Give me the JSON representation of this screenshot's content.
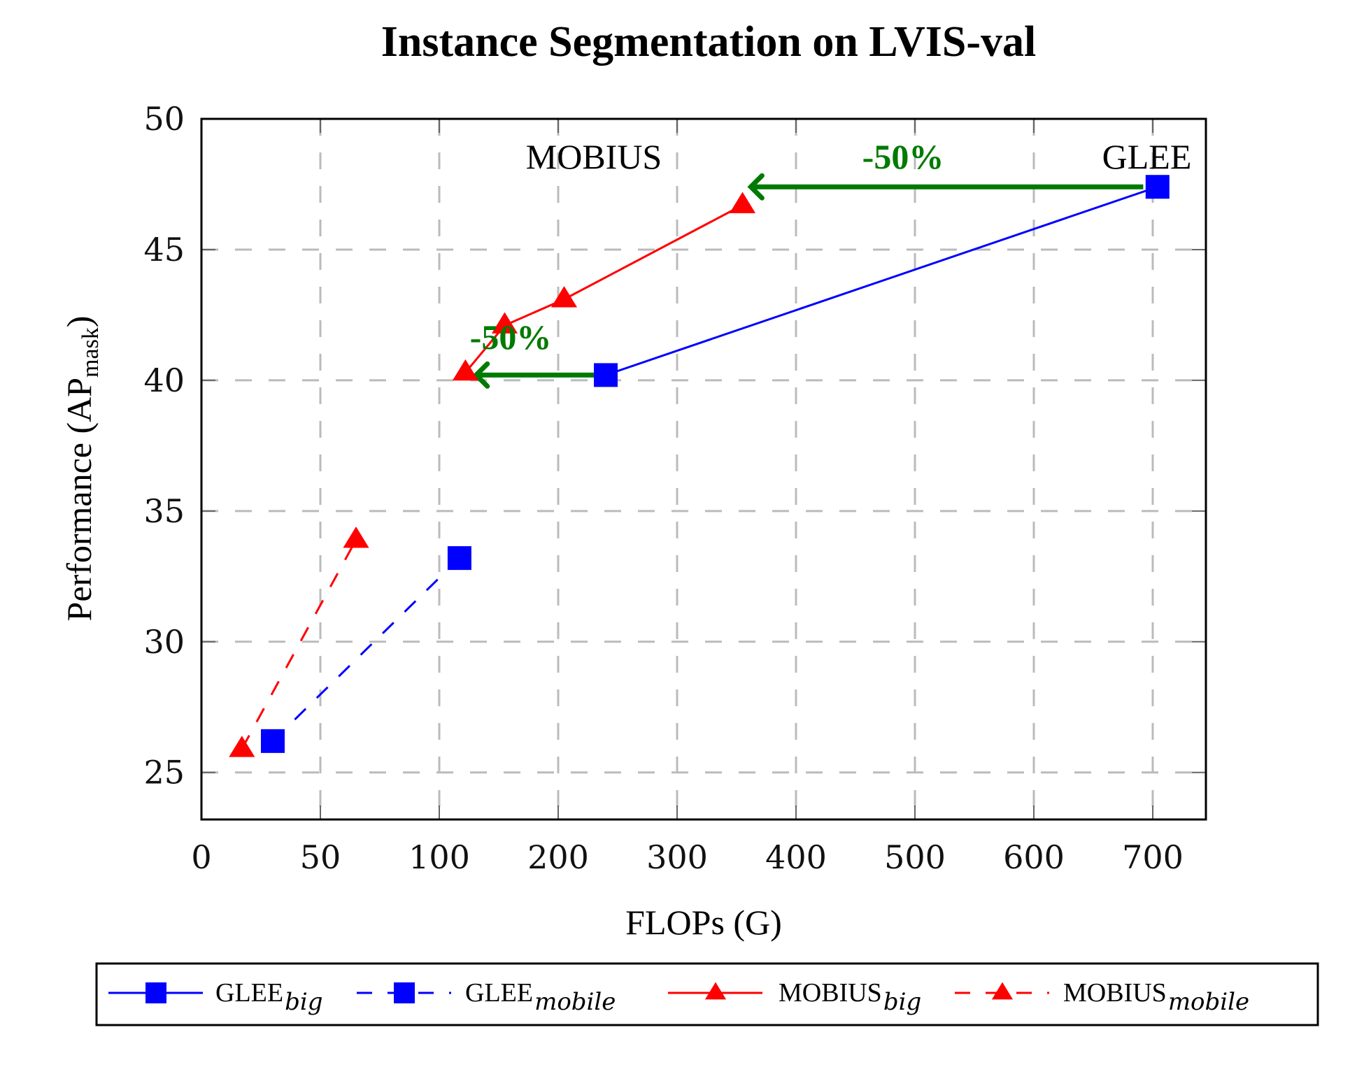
{
  "chart_data": {
    "type": "line",
    "title": "Instance Segmentation on LVIS-val",
    "xlabel": "FLOPs (G)",
    "ylabel": "Performance (AP",
    "ylabel_sub": "mask",
    "ylabel_close": ")",
    "x_scale": "piecewise",
    "x_ticks": [
      0,
      50,
      100,
      200,
      300,
      400,
      500,
      600,
      700
    ],
    "x_tick_labels": [
      "0",
      "50",
      "100",
      "200",
      "300",
      "400",
      "500",
      "600",
      "700"
    ],
    "xlim": [
      0,
      750
    ],
    "y_ticks": [
      25,
      30,
      35,
      40,
      45,
      50
    ],
    "y_tick_labels": [
      "25",
      "30",
      "35",
      "40",
      "45",
      "50"
    ],
    "ylim": [
      23.2,
      50
    ],
    "grid": true,
    "legend_position": "bottom",
    "series": [
      {
        "name": "GLEE",
        "name_sub": "big",
        "color": "#0000ff",
        "marker": "square",
        "dash": "solid",
        "points": [
          [
            240,
            40.2
          ],
          [
            704,
            47.4
          ]
        ]
      },
      {
        "name": "GLEE",
        "name_sub": "mobile",
        "color": "#0000ff",
        "marker": "square",
        "dash": "dashed",
        "points": [
          [
            30,
            26.2
          ],
          [
            117,
            33.2
          ]
        ]
      },
      {
        "name": "MOBIUS",
        "name_sub": "big",
        "color": "#ff0000",
        "marker": "triangle",
        "dash": "solid",
        "points": [
          [
            122,
            40.3
          ],
          [
            155,
            42.1
          ],
          [
            205,
            43.1
          ],
          [
            355,
            46.7
          ]
        ]
      },
      {
        "name": "MOBIUS",
        "name_sub": "mobile",
        "color": "#ff0000",
        "marker": "triangle",
        "dash": "dashed",
        "points": [
          [
            17,
            25.9
          ],
          [
            65,
            33.9
          ]
        ]
      }
    ],
    "annotations": [
      {
        "text": "MOBIUS",
        "x": 230,
        "y": 48.1,
        "color": "#000000"
      },
      {
        "text": "GLEE",
        "x": 695,
        "y": 48.1,
        "color": "#000000"
      },
      {
        "text": "-50%",
        "x": 490,
        "y": 48.1,
        "color": "#007a00"
      },
      {
        "text": "-50%",
        "x": 160,
        "y": 41.2,
        "color": "#007a00"
      }
    ],
    "arrows": [
      {
        "from": [
          692,
          47.4
        ],
        "to": [
          362,
          47.4
        ],
        "color": "#007a00"
      },
      {
        "from": [
          234,
          40.2
        ],
        "to": [
          131,
          40.2
        ],
        "color": "#007a00"
      }
    ]
  }
}
